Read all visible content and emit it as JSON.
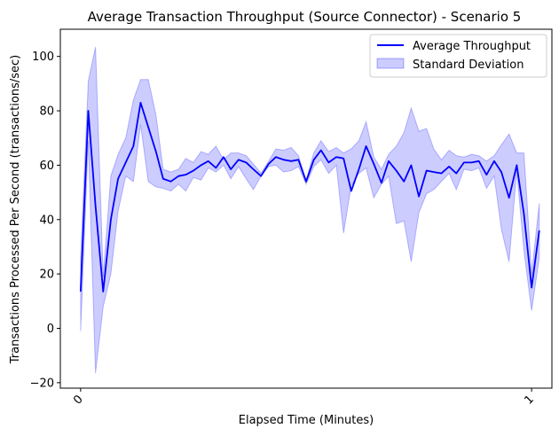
{
  "chart_data": {
    "type": "line",
    "title": "Average Transaction Throughput (Source Connector) - Scenario 5",
    "xlabel": "Elapsed Time (Minutes)",
    "ylabel": "Transactions Processed Per Second (transactions/sec)",
    "xlim": [
      -0.045,
      1.045
    ],
    "ylim": [
      -22,
      110
    ],
    "x_ticks": [
      0,
      1
    ],
    "x_tick_labels": [
      "0",
      "1"
    ],
    "y_ticks": [
      -20,
      0,
      20,
      40,
      60,
      80,
      100
    ],
    "y_tick_labels": [
      "−20",
      "0",
      "20",
      "40",
      "60",
      "80",
      "100"
    ],
    "grid": false,
    "legend_position": "top-right",
    "x": [
      0.0,
      0.017,
      0.033,
      0.05,
      0.067,
      0.083,
      0.1,
      0.117,
      0.133,
      0.15,
      0.167,
      0.183,
      0.2,
      0.217,
      0.233,
      0.25,
      0.267,
      0.283,
      0.3,
      0.317,
      0.333,
      0.35,
      0.367,
      0.383,
      0.4,
      0.417,
      0.433,
      0.45,
      0.467,
      0.483,
      0.5,
      0.517,
      0.533,
      0.55,
      0.567,
      0.583,
      0.6,
      0.617,
      0.633,
      0.65,
      0.667,
      0.683,
      0.7,
      0.717,
      0.733,
      0.75,
      0.767,
      0.783,
      0.8,
      0.817,
      0.833,
      0.85,
      0.867,
      0.883,
      0.9,
      0.917,
      0.933,
      0.95,
      0.967,
      0.983,
      1.0,
      1.017
    ],
    "series": [
      {
        "name": "Average Throughput",
        "color": "#0000ff",
        "values": [
          13.5,
          80,
          45,
          13.5,
          40,
          55,
          61,
          67,
          83,
          74,
          65,
          55,
          54,
          56,
          56.5,
          58,
          60,
          61.5,
          59,
          63,
          58.5,
          62,
          61,
          58.5,
          56,
          60.5,
          63,
          62,
          61.5,
          62,
          54,
          62,
          65.5,
          61,
          63,
          62.5,
          50.5,
          58.5,
          67,
          60.5,
          53.5,
          61.5,
          58,
          54,
          60,
          48.5,
          58,
          57.5,
          57,
          59.5,
          57,
          61,
          61,
          61.5,
          56.5,
          61.5,
          57.5,
          48,
          60,
          42,
          15,
          36
        ]
      }
    ],
    "band": {
      "name": "Standard Deviation",
      "color": "#0000ff",
      "lower": [
        -1,
        69,
        -16.5,
        8,
        20,
        43,
        56,
        54,
        75,
        54,
        52,
        51.5,
        50.5,
        53,
        50.5,
        55.5,
        54.5,
        59,
        57.5,
        60,
        55,
        59.5,
        55,
        51,
        56,
        59.5,
        60,
        57.5,
        58,
        59.5,
        53,
        59.5,
        62,
        57,
        60,
        35,
        52.5,
        57,
        59,
        48,
        53,
        56,
        38.5,
        39.5,
        24.5,
        42.5,
        49.5,
        51,
        54,
        57,
        51,
        58.5,
        58,
        59,
        51.5,
        56,
        36.5,
        24.5,
        58,
        28.5,
        6.5,
        26
      ],
      "upper": [
        26,
        91,
        103.5,
        19,
        56,
        64,
        70,
        84,
        91.5,
        91.5,
        78.5,
        58.5,
        57.5,
        58.5,
        62.5,
        61,
        65,
        64,
        67,
        62,
        64.5,
        64.5,
        63.5,
        60.5,
        57,
        61.5,
        66,
        65.5,
        66.5,
        63.5,
        54.5,
        64.5,
        69,
        65,
        66.5,
        64.5,
        66,
        69,
        76,
        63,
        58.5,
        64,
        67,
        72,
        81,
        72.5,
        73.5,
        66,
        62,
        65.5,
        63.5,
        63,
        64,
        63.5,
        61.5,
        63.5,
        67.5,
        71.5,
        64.5,
        64.5,
        20,
        46
      ]
    }
  }
}
